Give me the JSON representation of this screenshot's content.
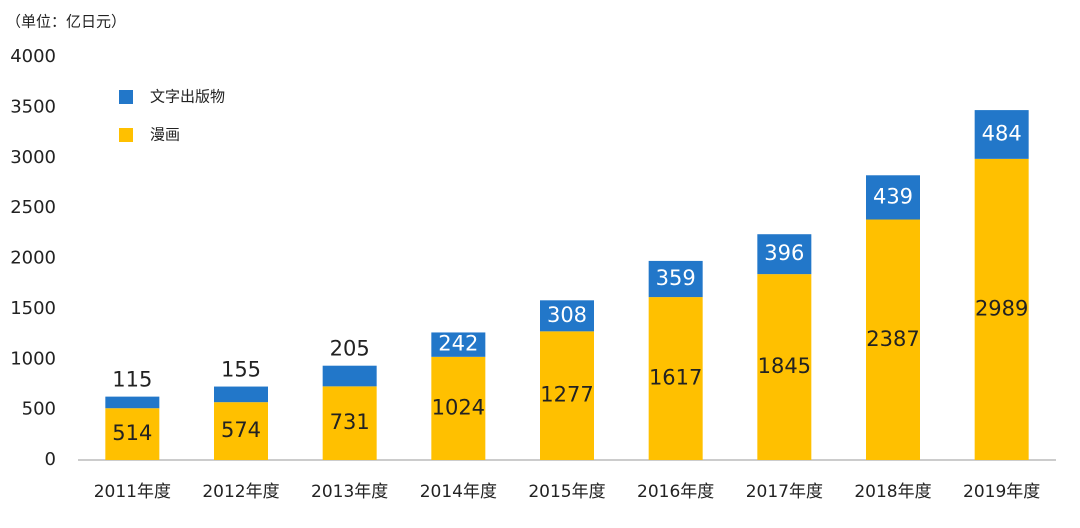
{
  "chart_data": {
    "type": "stacked_bar",
    "unit_label": "（单位：亿日元）",
    "categories": [
      "2011年度",
      "2012年度",
      "2013年度",
      "2014年度",
      "2015年度",
      "2016年度",
      "2017年度",
      "2018年度",
      "2019年度"
    ],
    "series": [
      {
        "name": "漫画",
        "color": "#ffc000",
        "values": [
          514,
          574,
          731,
          1024,
          1277,
          1617,
          1845,
          2387,
          2989
        ]
      },
      {
        "name": "文字出版物",
        "color": "#2277c9",
        "values": [
          115,
          155,
          205,
          242,
          308,
          359,
          396,
          439,
          484
        ]
      }
    ],
    "ylim": [
      0,
      4000
    ],
    "yticks": [
      0,
      500,
      1000,
      1500,
      2000,
      2500,
      3000,
      3500,
      4000
    ],
    "grid": false
  }
}
